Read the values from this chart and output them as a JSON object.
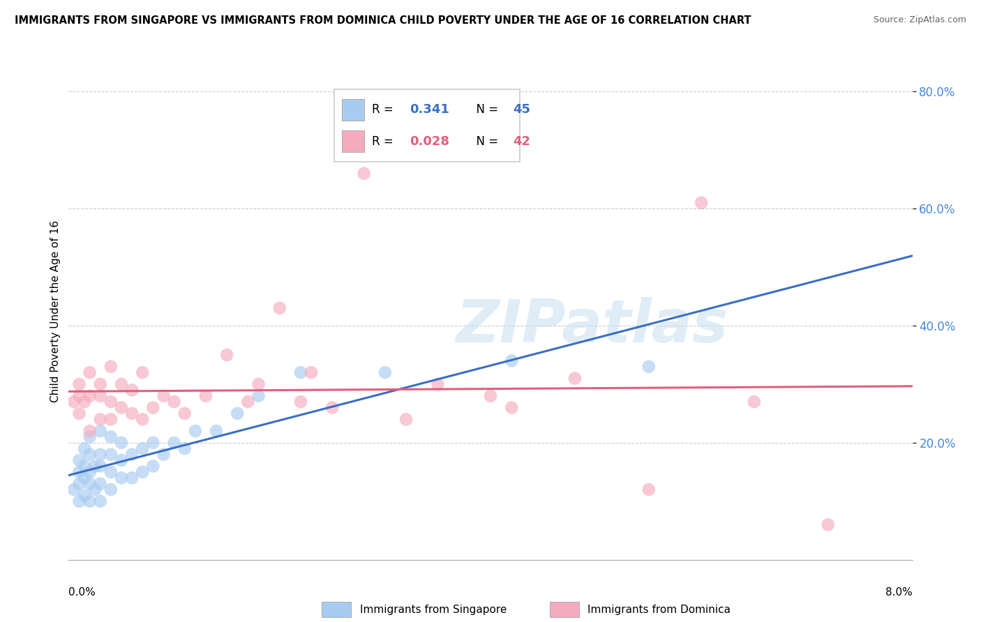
{
  "title": "IMMIGRANTS FROM SINGAPORE VS IMMIGRANTS FROM DOMINICA CHILD POVERTY UNDER THE AGE OF 16 CORRELATION CHART",
  "source": "Source: ZipAtlas.com",
  "ylabel": "Child Poverty Under the Age of 16",
  "xmin": 0.0,
  "xmax": 0.08,
  "ymin": 0.0,
  "ymax": 0.85,
  "singapore_R": 0.341,
  "singapore_N": 45,
  "dominica_R": 0.028,
  "dominica_N": 42,
  "singapore_color": "#A8CCF0",
  "dominica_color": "#F5ABBE",
  "singapore_line_color": "#3A6FC4",
  "dominica_line_color": "#E0607A",
  "legend_label_singapore": "Immigrants from Singapore",
  "legend_label_dominica": "Immigrants from Dominica",
  "watermark": "ZIPatlas",
  "sg_x": [
    0.0005,
    0.001,
    0.001,
    0.001,
    0.001,
    0.0015,
    0.0015,
    0.0015,
    0.0015,
    0.002,
    0.002,
    0.002,
    0.002,
    0.002,
    0.0025,
    0.0025,
    0.003,
    0.003,
    0.003,
    0.003,
    0.003,
    0.004,
    0.004,
    0.004,
    0.004,
    0.005,
    0.005,
    0.005,
    0.006,
    0.006,
    0.007,
    0.007,
    0.008,
    0.008,
    0.009,
    0.01,
    0.011,
    0.012,
    0.014,
    0.016,
    0.018,
    0.022,
    0.03,
    0.042,
    0.055
  ],
  "sg_y": [
    0.12,
    0.1,
    0.13,
    0.15,
    0.17,
    0.11,
    0.14,
    0.16,
    0.19,
    0.1,
    0.13,
    0.15,
    0.18,
    0.21,
    0.12,
    0.16,
    0.1,
    0.13,
    0.16,
    0.18,
    0.22,
    0.12,
    0.15,
    0.18,
    0.21,
    0.14,
    0.17,
    0.2,
    0.14,
    0.18,
    0.15,
    0.19,
    0.16,
    0.2,
    0.18,
    0.2,
    0.19,
    0.22,
    0.22,
    0.25,
    0.28,
    0.32,
    0.32,
    0.34,
    0.33
  ],
  "dm_x": [
    0.0005,
    0.001,
    0.001,
    0.001,
    0.0015,
    0.002,
    0.002,
    0.002,
    0.003,
    0.003,
    0.003,
    0.004,
    0.004,
    0.004,
    0.005,
    0.005,
    0.006,
    0.006,
    0.007,
    0.007,
    0.008,
    0.009,
    0.01,
    0.011,
    0.013,
    0.015,
    0.017,
    0.018,
    0.02,
    0.022,
    0.023,
    0.025,
    0.028,
    0.032,
    0.035,
    0.04,
    0.042,
    0.048,
    0.055,
    0.06,
    0.065,
    0.072
  ],
  "dm_y": [
    0.27,
    0.25,
    0.28,
    0.3,
    0.27,
    0.22,
    0.28,
    0.32,
    0.24,
    0.28,
    0.3,
    0.24,
    0.27,
    0.33,
    0.26,
    0.3,
    0.25,
    0.29,
    0.24,
    0.32,
    0.26,
    0.28,
    0.27,
    0.25,
    0.28,
    0.35,
    0.27,
    0.3,
    0.43,
    0.27,
    0.32,
    0.26,
    0.66,
    0.24,
    0.3,
    0.28,
    0.26,
    0.31,
    0.12,
    0.61,
    0.27,
    0.06
  ]
}
